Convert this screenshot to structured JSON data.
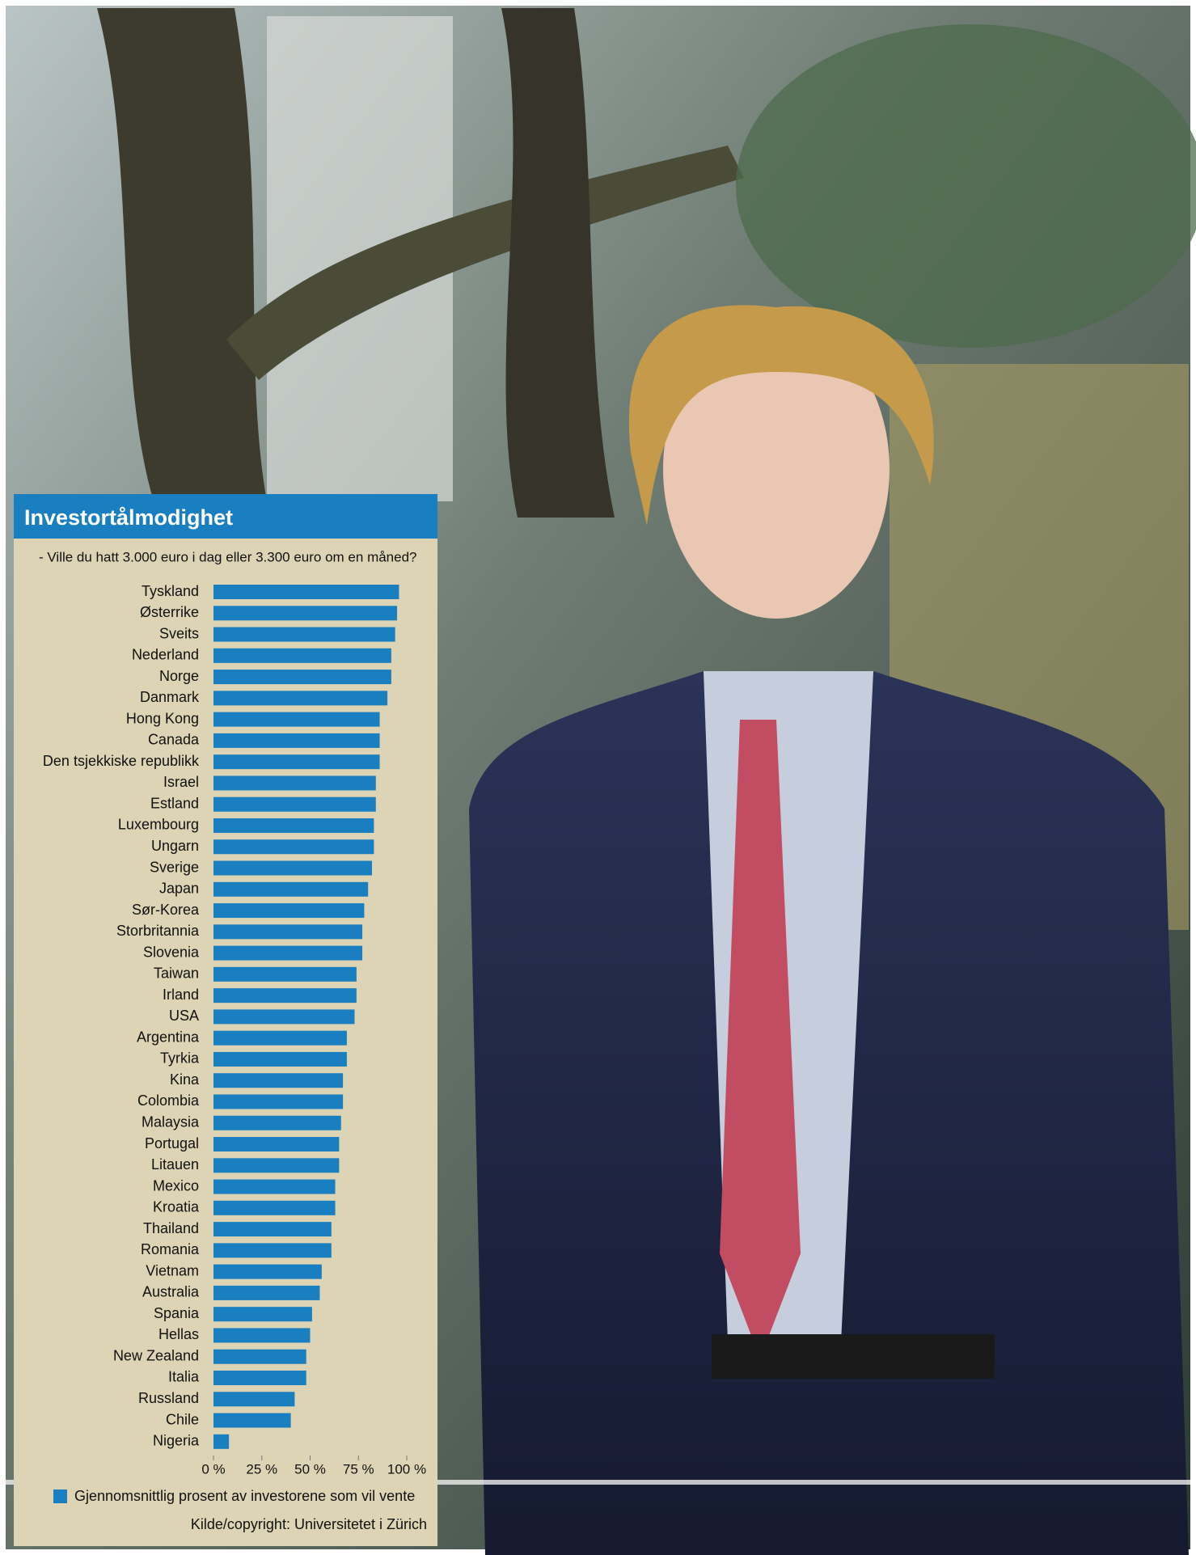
{
  "chart_data": {
    "type": "hbar",
    "title": "Investortålmodighet",
    "subtitle": "- Ville du hatt 3.000 euro i dag eller 3.300 euro om en måned?",
    "source": "Kilde/copyright: Universitetet i Zürich",
    "categories": [
      "Tyskland",
      "Østerrike",
      "Sveits",
      "Nederland",
      "Norge",
      "Danmark",
      "Hong Kong",
      "Canada",
      "Den tsjekkiske republikk",
      "Israel",
      "Estland",
      "Luxembourg",
      "Ungarn",
      "Sverige",
      "Japan",
      "Sør-Korea",
      "Storbritannia",
      "Slovenia",
      "Taiwan",
      "Irland",
      "USA",
      "Argentina",
      "Tyrkia",
      "Kina",
      "Colombia",
      "Malaysia",
      "Portugal",
      "Litauen",
      "Mexico",
      "Kroatia",
      "Thailand",
      "Romania",
      "Vietnam",
      "Australia",
      "Spania",
      "Hellas",
      "New Zealand",
      "Italia",
      "Russland",
      "Chile",
      "Nigeria"
    ],
    "series": [
      {
        "name": "Gjennomsnittlig prosent av investorene som vil vente",
        "color": "#1a7fc1",
        "values": [
          96,
          95,
          94,
          92,
          92,
          90,
          86,
          86,
          86,
          84,
          84,
          83,
          83,
          82,
          80,
          78,
          77,
          77,
          74,
          74,
          73,
          69,
          69,
          67,
          67,
          66,
          65,
          65,
          63,
          63,
          61,
          61,
          56,
          55,
          51,
          50,
          48,
          48,
          42,
          40,
          8
        ]
      }
    ],
    "xlim": [
      0,
      100
    ],
    "xticks": [
      {
        "value": 0,
        "label": "0 %"
      },
      {
        "value": 25,
        "label": "25 %"
      },
      {
        "value": 50,
        "label": "50 %"
      },
      {
        "value": 75,
        "label": "75 %"
      },
      {
        "value": 100,
        "label": "100 %"
      }
    ]
  }
}
